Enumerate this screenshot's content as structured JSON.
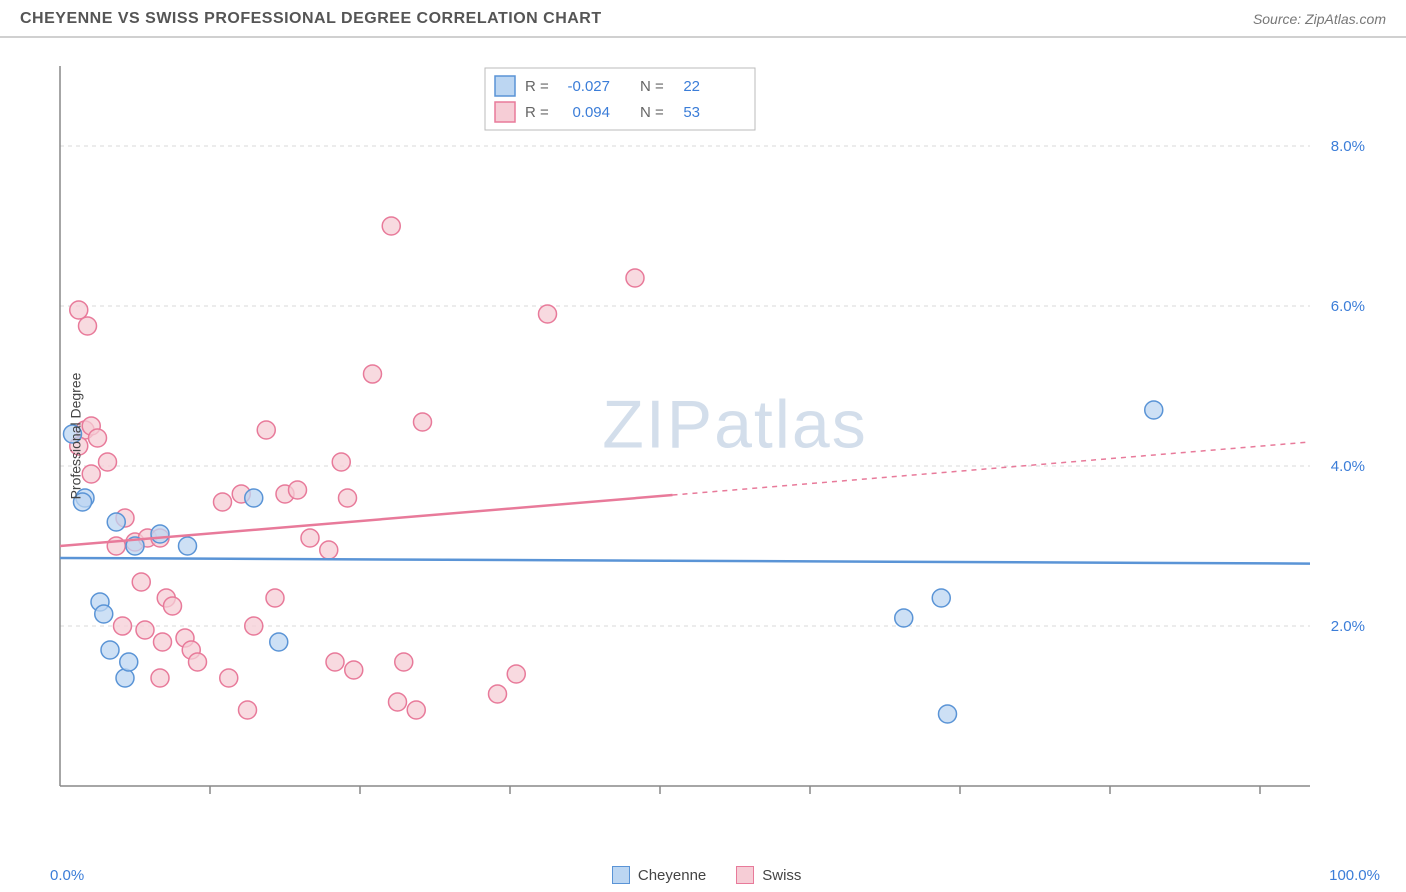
{
  "title": "CHEYENNE VS SWISS PROFESSIONAL DEGREE CORRELATION CHART",
  "source": "Source: ZipAtlas.com",
  "ylabel": "Professional Degree",
  "watermark": "ZIPatlas",
  "chart": {
    "type": "scatter",
    "xlim": [
      0,
      100
    ],
    "ylim": [
      0,
      9
    ],
    "xtick_positions": [
      12,
      24,
      36,
      48,
      60,
      72,
      84,
      96
    ],
    "ytick_positions": [
      2,
      4,
      6,
      8
    ],
    "ytick_labels": [
      "2.0%",
      "4.0%",
      "6.0%",
      "8.0%"
    ],
    "xaxis_min_label": "0.0%",
    "xaxis_max_label": "100.0%",
    "background_color": "#ffffff",
    "grid_color": "#d9d9d9",
    "axis_color": "#888888",
    "tick_label_color": "#3b7dd8",
    "marker_radius": 9,
    "series": [
      {
        "name": "Cheyenne",
        "color_fill": "#bcd6f2",
        "color_stroke": "#5a94d6",
        "R": "-0.027",
        "N": "22",
        "trend": {
          "y_at_x0": 2.85,
          "y_at_x100": 2.78,
          "solid_until_x": 100
        },
        "points": [
          [
            1.0,
            4.4
          ],
          [
            2.0,
            3.6
          ],
          [
            1.8,
            3.55
          ],
          [
            4.5,
            3.3
          ],
          [
            6.0,
            3.0
          ],
          [
            10.2,
            3.0
          ],
          [
            8.0,
            3.15
          ],
          [
            15.5,
            3.6
          ],
          [
            3.2,
            2.3
          ],
          [
            3.5,
            2.15
          ],
          [
            4.0,
            1.7
          ],
          [
            5.2,
            1.35
          ],
          [
            5.5,
            1.55
          ],
          [
            17.5,
            1.8
          ],
          [
            67.5,
            2.1
          ],
          [
            70.5,
            2.35
          ],
          [
            71.0,
            0.9
          ],
          [
            87.5,
            4.7
          ]
        ]
      },
      {
        "name": "Swiss",
        "color_fill": "#f6cdd6",
        "color_stroke": "#e87a9a",
        "R": "0.094",
        "N": "53",
        "trend": {
          "y_at_x0": 3.0,
          "y_at_x100": 4.3,
          "solid_until_x": 49
        },
        "points": [
          [
            1.5,
            5.95
          ],
          [
            2.2,
            5.75
          ],
          [
            2.0,
            4.45
          ],
          [
            2.5,
            4.5
          ],
          [
            3.0,
            4.35
          ],
          [
            1.5,
            4.25
          ],
          [
            3.8,
            4.05
          ],
          [
            2.5,
            3.9
          ],
          [
            5.2,
            3.35
          ],
          [
            6.0,
            3.05
          ],
          [
            7.0,
            3.1
          ],
          [
            8.0,
            3.1
          ],
          [
            4.5,
            3.0
          ],
          [
            6.5,
            2.55
          ],
          [
            8.5,
            2.35
          ],
          [
            9.0,
            2.25
          ],
          [
            5.0,
            2.0
          ],
          [
            6.8,
            1.95
          ],
          [
            10.0,
            1.85
          ],
          [
            8.2,
            1.8
          ],
          [
            10.5,
            1.7
          ],
          [
            11.0,
            1.55
          ],
          [
            8.0,
            1.35
          ],
          [
            13.5,
            1.35
          ],
          [
            15.0,
            0.95
          ],
          [
            13.0,
            3.55
          ],
          [
            14.5,
            3.65
          ],
          [
            15.5,
            2.0
          ],
          [
            16.5,
            4.45
          ],
          [
            18.0,
            3.65
          ],
          [
            17.2,
            2.35
          ],
          [
            19.0,
            3.7
          ],
          [
            20.0,
            3.1
          ],
          [
            21.5,
            2.95
          ],
          [
            22.0,
            1.55
          ],
          [
            22.5,
            4.05
          ],
          [
            23.0,
            3.6
          ],
          [
            23.5,
            1.45
          ],
          [
            25.0,
            5.15
          ],
          [
            26.5,
            7.0
          ],
          [
            27.0,
            1.05
          ],
          [
            27.5,
            1.55
          ],
          [
            29.0,
            4.55
          ],
          [
            28.5,
            0.95
          ],
          [
            35.0,
            1.15
          ],
          [
            36.5,
            1.4
          ],
          [
            39.0,
            5.9
          ],
          [
            46.0,
            6.35
          ]
        ]
      }
    ],
    "legend_top": {
      "swatch_size": 20,
      "rows": [
        {
          "swatch_fill": "#bcd6f2",
          "swatch_stroke": "#5a94d6",
          "R_label": "R =",
          "R_val": "-0.027",
          "N_label": "N =",
          "N_val": "22"
        },
        {
          "swatch_fill": "#f6cdd6",
          "swatch_stroke": "#e87a9a",
          "R_label": "R =",
          "R_val": "0.094",
          "N_label": "N =",
          "N_val": "53"
        }
      ],
      "label_color": "#666666",
      "value_color": "#3b7dd8",
      "border_color": "#bbbbbb"
    }
  }
}
